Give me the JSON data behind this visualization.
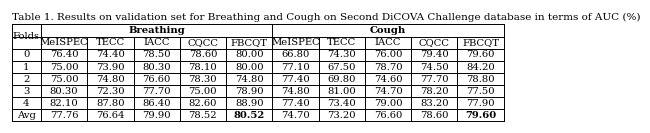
{
  "title": "Table 1. Results on validation set for Breathing and Cough on Second DiCOVA Challenge database in terms of AUC (%)",
  "folds": [
    "Folds",
    "0",
    "1",
    "2",
    "3",
    "4",
    "Avg"
  ],
  "breathing_cols": [
    "MeISPEC",
    "TECC",
    "IACC",
    "CQCC",
    "FBCQT"
  ],
  "cough_cols": [
    "MeISPEC",
    "TECC",
    "IACC",
    "CQCC",
    "FBCQT"
  ],
  "breathing_data": [
    [
      76.4,
      74.4,
      78.5,
      78.6,
      80.0
    ],
    [
      75.0,
      73.9,
      80.3,
      78.1,
      80.0
    ],
    [
      75.0,
      74.8,
      76.6,
      78.3,
      74.8
    ],
    [
      80.3,
      72.3,
      77.7,
      75.0,
      78.9
    ],
    [
      82.1,
      87.8,
      86.4,
      82.6,
      88.9
    ],
    [
      77.76,
      76.64,
      79.9,
      78.52,
      80.52
    ]
  ],
  "cough_data": [
    [
      66.8,
      74.3,
      76.0,
      79.4,
      79.6
    ],
    [
      77.1,
      67.5,
      78.7,
      74.5,
      84.2
    ],
    [
      77.4,
      69.8,
      74.6,
      77.7,
      78.8
    ],
    [
      74.8,
      81.0,
      74.7,
      78.2,
      77.5
    ],
    [
      77.4,
      73.4,
      79.0,
      83.2,
      77.9
    ],
    [
      74.7,
      73.2,
      76.6,
      78.6,
      79.6
    ]
  ],
  "bg_color": "#ffffff",
  "line_color": "#000000",
  "text_color": "#000000",
  "font_size": 7.2,
  "title_font_size": 7.5
}
